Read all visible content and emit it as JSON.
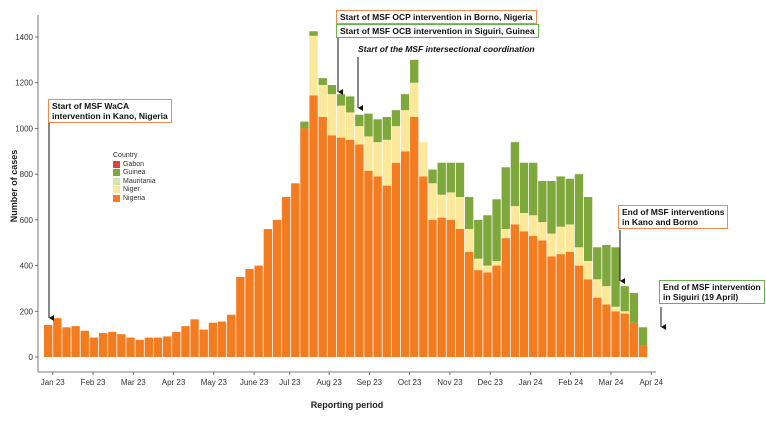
{
  "chart_data": {
    "type": "bar",
    "stacked": true,
    "xlabel": "Reporting period",
    "ylabel": "Number of cases",
    "ylim": [
      0,
      1450
    ],
    "yticks": [
      0,
      200,
      400,
      600,
      800,
      1000,
      1200,
      1400
    ],
    "grid": false,
    "x_tick_labels": [
      "Jan 23",
      "Feb 23",
      "Mar 23",
      "Apr 23",
      "May 23",
      "June 23",
      "Jul 23",
      "Aug 23",
      "Sep 23",
      "Oct 23",
      "Nov 23",
      "Dec 23",
      "Jan 24",
      "Feb 24",
      "Mar 24",
      "Apr 24"
    ],
    "x_tick_positions": [
      0.5,
      4.9,
      9.3,
      13.7,
      18.1,
      22.5,
      26.4,
      30.7,
      35.1,
      39.5,
      43.9,
      48.3,
      52.7,
      57.1,
      61.5,
      65.9
    ],
    "legend": {
      "title": "Country",
      "items": [
        {
          "name": "Gabon",
          "color": "#d9443d"
        },
        {
          "name": "Guinea",
          "color": "#7ea83c"
        },
        {
          "name": "Mauritania",
          "color": "#cfe7a8"
        },
        {
          "name": "Niger",
          "color": "#fbe89a"
        },
        {
          "name": "Nigeria",
          "color": "#f47c20"
        }
      ]
    },
    "series": [
      {
        "name": "Nigeria",
        "color": "#f47c20",
        "values": [
          140,
          170,
          130,
          135,
          115,
          85,
          105,
          110,
          100,
          85,
          75,
          85,
          85,
          90,
          110,
          135,
          165,
          120,
          150,
          155,
          185,
          350,
          385,
          400,
          560,
          600,
          700,
          760,
          1000,
          1145,
          1050,
          970,
          960,
          950,
          930,
          815,
          790,
          750,
          850,
          900,
          1050,
          790,
          600,
          610,
          600,
          560,
          460,
          380,
          370,
          400,
          520,
          580,
          550,
          530,
          510,
          440,
          450,
          460,
          400,
          340,
          260,
          230,
          200,
          190,
          150,
          50
        ]
      },
      {
        "name": "Niger",
        "color": "#fbe89a",
        "values": [
          0,
          0,
          0,
          0,
          0,
          0,
          0,
          0,
          0,
          0,
          0,
          0,
          0,
          0,
          0,
          0,
          0,
          0,
          0,
          0,
          0,
          0,
          0,
          0,
          0,
          0,
          0,
          0,
          0,
          260,
          140,
          180,
          140,
          120,
          80,
          150,
          150,
          200,
          160,
          180,
          150,
          150,
          160,
          100,
          120,
          140,
          100,
          50,
          30,
          20,
          40,
          80,
          80,
          90,
          80,
          100,
          120,
          120,
          80,
          80,
          80,
          80,
          20,
          10,
          0,
          0
        ]
      },
      {
        "name": "Guinea",
        "color": "#7ea83c",
        "values": [
          0,
          0,
          0,
          0,
          0,
          0,
          0,
          0,
          0,
          0,
          0,
          0,
          0,
          0,
          0,
          0,
          0,
          0,
          0,
          0,
          0,
          0,
          0,
          0,
          0,
          0,
          0,
          0,
          30,
          20,
          30,
          40,
          50,
          70,
          50,
          100,
          100,
          100,
          70,
          70,
          100,
          0,
          60,
          140,
          130,
          150,
          140,
          170,
          220,
          270,
          270,
          280,
          220,
          230,
          180,
          230,
          220,
          200,
          320,
          280,
          140,
          180,
          260,
          110,
          130,
          80
        ]
      }
    ]
  },
  "annotations": {
    "waca": [
      "Start of MSF WaCA",
      "intervention in Kano, Nigeria"
    ],
    "ocp": "Start of MSF OCP intervention in Borno, Nigeria",
    "ocb": "Start of  MSF OCB intervention in Siguiri, Guinea",
    "coordination": "Start of the MSF intersectional coordination",
    "end_kano": [
      "End of MSF interventions",
      "in Kano and Borno"
    ],
    "end_siguiri": [
      "End of MSF intervention",
      "in Siguiri (19 April)"
    ]
  }
}
